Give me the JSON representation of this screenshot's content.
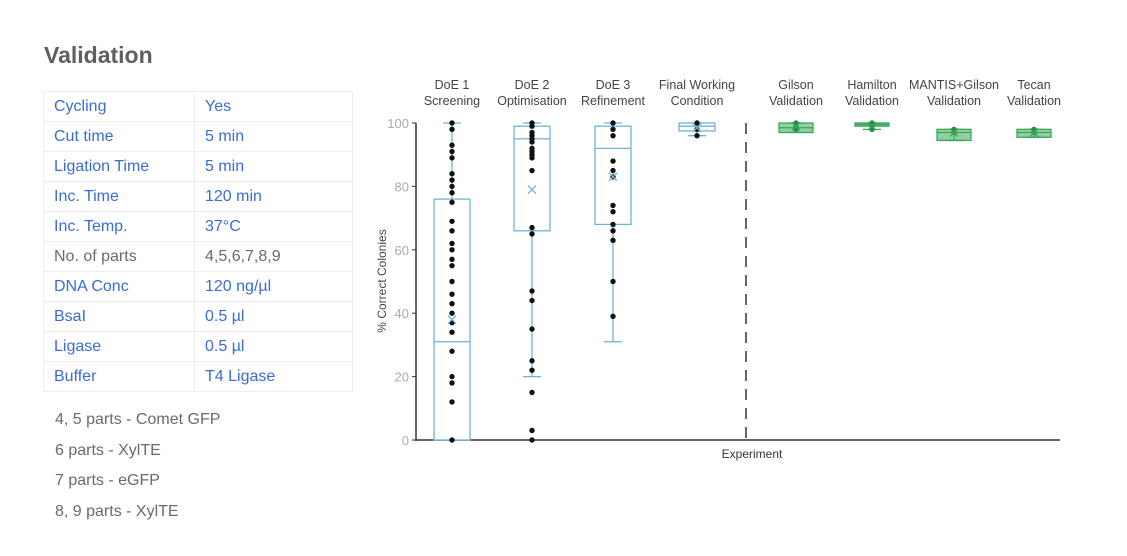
{
  "title": "Validation",
  "table": [
    {
      "label": "Cycling",
      "value": "Yes",
      "muted": false
    },
    {
      "label": "Cut time",
      "value": "5 min",
      "muted": false
    },
    {
      "label": "Ligation Time",
      "value": "5 min",
      "muted": false
    },
    {
      "label": "Inc. Time",
      "value": "120 min",
      "muted": false
    },
    {
      "label": "Inc. Temp.",
      "value": "37°C",
      "muted": false
    },
    {
      "label": "No. of parts",
      "value": "4,5,6,7,8,9",
      "muted": true
    },
    {
      "label": "DNA Conc",
      "value": "120 ng/µl",
      "muted": false
    },
    {
      "label": "BsaI",
      "value": "0.5 µl",
      "muted": false
    },
    {
      "label": "Ligase",
      "value": "0.5 µl",
      "muted": false
    },
    {
      "label": "Buffer",
      "value": "T4 Ligase",
      "muted": false
    }
  ],
  "notes": [
    "4, 5 parts - Comet GFP",
    "6 parts - XylTE",
    "7 parts - eGFP",
    "8, 9 parts - XylTE"
  ],
  "chart_data": {
    "type": "box",
    "xlabel": "Experiment",
    "ylabel": "% Correct Colonies",
    "ylim": [
      0,
      100
    ],
    "yticks": [
      0,
      20,
      40,
      60,
      80,
      100
    ],
    "colors": {
      "blue": "#6fb3d6",
      "green": "#3aa85a"
    },
    "categories": [
      {
        "label": [
          "DoE 1",
          "Screening"
        ],
        "color": "blue",
        "q1": 0,
        "median": 31,
        "q3": 76,
        "low": 0,
        "high": 100,
        "mean": 38,
        "points": [
          100,
          98,
          93,
          91,
          89,
          84,
          82,
          80,
          78,
          75,
          69,
          66,
          62,
          60,
          57,
          55,
          50,
          46,
          43,
          40,
          37,
          34,
          28,
          20,
          18,
          12,
          0
        ]
      },
      {
        "label": [
          "DoE 2",
          "Optimisation"
        ],
        "color": "blue",
        "q1": 66,
        "median": 95,
        "q3": 99,
        "low": 20,
        "high": 100,
        "mean": 79,
        "points": [
          100,
          99,
          97,
          96,
          95,
          94,
          92,
          91,
          90,
          89,
          85,
          67,
          65,
          47,
          44,
          35,
          25,
          22,
          15,
          3,
          0
        ]
      },
      {
        "label": [
          "DoE 3",
          "Refinement"
        ],
        "color": "blue",
        "q1": 68,
        "median": 92,
        "q3": 99,
        "low": 31,
        "high": 100,
        "mean": 83,
        "points": [
          100,
          98,
          96,
          88,
          85,
          83,
          74,
          72,
          68,
          66,
          63,
          50,
          39
        ]
      },
      {
        "label": [
          "Final Working",
          "Condition"
        ],
        "color": "blue",
        "q1": 97.5,
        "median": 99,
        "q3": 100,
        "low": 96,
        "high": 100,
        "mean": 98.5,
        "points": [
          100,
          98,
          96
        ]
      },
      {
        "label": [
          "Gilson",
          "Validation"
        ],
        "color": "green",
        "q1": 97,
        "median": 98.5,
        "q3": 100,
        "low": 97,
        "high": 100,
        "mean": 99,
        "points": [
          100,
          99,
          98
        ]
      },
      {
        "label": [
          "Hamilton",
          "Validation"
        ],
        "color": "green",
        "q1": 99,
        "median": 99.5,
        "q3": 100,
        "low": 98,
        "high": 100,
        "mean": 99,
        "points": [
          100,
          99,
          98
        ]
      },
      {
        "label": [
          "MANTIS+Gilson",
          "Validation"
        ],
        "color": "green",
        "q1": 94.5,
        "median": 97,
        "q3": 98,
        "low": 94.5,
        "high": 98,
        "mean": 97,
        "points": [
          98,
          97
        ]
      },
      {
        "label": [
          "Tecan",
          "Validation"
        ],
        "color": "green",
        "q1": 95.5,
        "median": 97,
        "q3": 98,
        "low": 95.5,
        "high": 98,
        "mean": 97,
        "points": [
          98,
          97
        ]
      }
    ]
  }
}
